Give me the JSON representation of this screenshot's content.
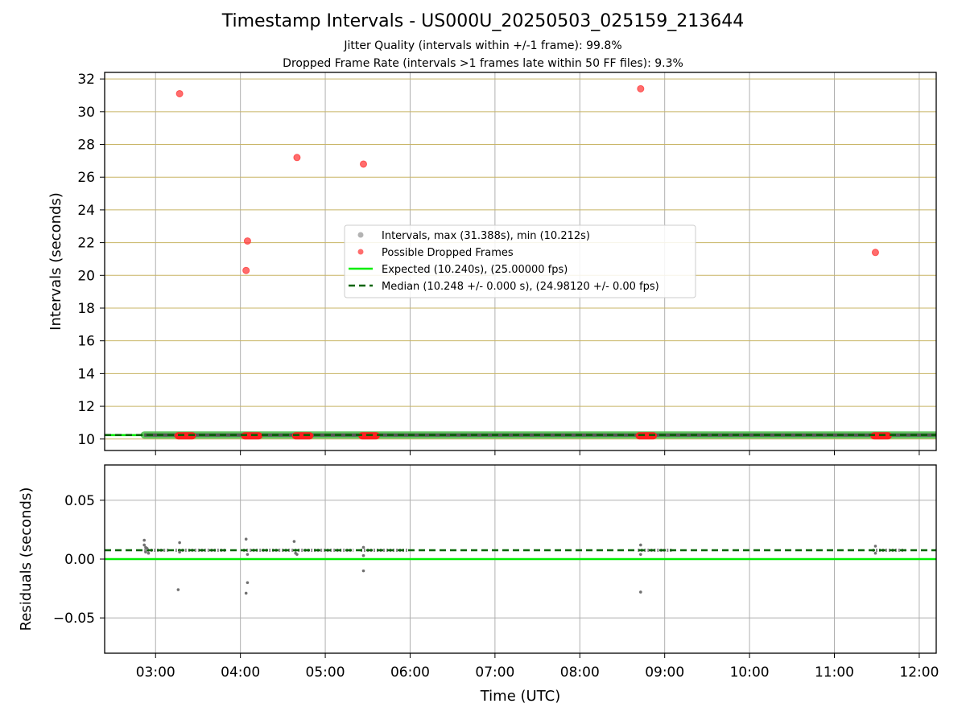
{
  "header": {
    "title": "Timestamp Intervals - US000U_20250503_025159_213644",
    "subtitle_1": "Jitter Quality (intervals within +/-1 frame): 99.8%",
    "subtitle_2": "Dropped Frame Rate (intervals >1 frames late within 50 FF files): 9.3%"
  },
  "chart_data": [
    {
      "type": "scatter",
      "ylabel": "Intervals (seconds)",
      "xlim": [
        "02:24",
        "12:12"
      ],
      "ylim": [
        9.3,
        32.4
      ],
      "y_ticks": [
        10,
        12,
        14,
        16,
        18,
        20,
        22,
        24,
        26,
        28,
        30,
        32
      ],
      "grid": true,
      "legend_position": "center",
      "legend": [
        "Intervals, max (31.388s), min (10.212s)",
        "Possible Dropped Frames",
        "Expected (10.240s), (25.00000 fps)",
        "Median (10.248 +/- 0.000 s), (24.98120 +/- 0.00 fps)"
      ],
      "colors": {
        "intervals": "#808080",
        "dropped": "#ff3c3c",
        "expected": "#00ee00",
        "median": "#006400",
        "grid": "#c8b464"
      },
      "intervals_range": {
        "x_start": "02:52",
        "x_end": "12:12",
        "value": 10.248
      },
      "expected_value": 10.24,
      "median_value": 10.248,
      "dropped_frames": [
        {
          "x": "03:17",
          "y": 31.1
        },
        {
          "x": "04:05",
          "y": 22.1
        },
        {
          "x": "04:04",
          "y": 20.3
        },
        {
          "x": "04:40",
          "y": 27.2
        },
        {
          "x": "05:27",
          "y": 26.8
        },
        {
          "x": "08:43",
          "y": 31.4
        },
        {
          "x": "11:29",
          "y": 21.4
        }
      ],
      "dropped_clusters": [
        {
          "x_start": "03:16",
          "x_end": "03:26",
          "y": 10.2
        },
        {
          "x_start": "04:03",
          "x_end": "04:13",
          "y": 10.2
        },
        {
          "x_start": "04:39",
          "x_end": "04:49",
          "y": 10.2
        },
        {
          "x_start": "05:26",
          "x_end": "05:36",
          "y": 10.2
        },
        {
          "x_start": "08:42",
          "x_end": "08:52",
          "y": 10.2
        },
        {
          "x_start": "11:28",
          "x_end": "11:38",
          "y": 10.2
        }
      ]
    },
    {
      "type": "scatter",
      "xlabel": "Time (UTC)",
      "ylabel": "Residuals (seconds)",
      "xlim": [
        "02:24",
        "12:12"
      ],
      "ylim": [
        -0.08,
        0.08
      ],
      "y_ticks": [
        0.05,
        0.0,
        -0.05
      ],
      "y_tick_labels": [
        "0.05",
        "0.00",
        "−0.05"
      ],
      "x_ticks": [
        "03:00",
        "04:00",
        "05:00",
        "06:00",
        "07:00",
        "08:00",
        "09:00",
        "10:00",
        "11:00",
        "12:00"
      ],
      "grid": true,
      "expected_residual": 0.0,
      "median_residual": 0.0075,
      "points": [
        {
          "x": "02:52",
          "y": 0.016
        },
        {
          "x": "02:52",
          "y": 0.012
        },
        {
          "x": "02:53",
          "y": 0.01
        },
        {
          "x": "02:53",
          "y": 0.006
        },
        {
          "x": "02:54",
          "y": 0.009
        },
        {
          "x": "02:55",
          "y": 0.005
        },
        {
          "x": "03:17",
          "y": 0.014
        },
        {
          "x": "03:17",
          "y": 0.006
        },
        {
          "x": "03:16",
          "y": -0.026
        },
        {
          "x": "04:04",
          "y": 0.017
        },
        {
          "x": "04:05",
          "y": 0.004
        },
        {
          "x": "04:05",
          "y": -0.02
        },
        {
          "x": "04:04",
          "y": -0.029
        },
        {
          "x": "04:38",
          "y": 0.015
        },
        {
          "x": "04:39",
          "y": 0.005
        },
        {
          "x": "04:40",
          "y": 0.004
        },
        {
          "x": "05:27",
          "y": 0.01
        },
        {
          "x": "05:27",
          "y": 0.003
        },
        {
          "x": "05:27",
          "y": -0.01
        },
        {
          "x": "08:43",
          "y": 0.012
        },
        {
          "x": "08:43",
          "y": 0.004
        },
        {
          "x": "08:43",
          "y": -0.028
        },
        {
          "x": "11:29",
          "y": 0.011
        },
        {
          "x": "11:29",
          "y": 0.005
        }
      ],
      "dense_segments": [
        {
          "x_start": "02:52",
          "x_end": "03:10"
        },
        {
          "x_start": "03:14",
          "x_end": "03:50"
        },
        {
          "x_start": "04:02",
          "x_end": "05:20"
        },
        {
          "x_start": "05:25",
          "x_end": "05:58"
        },
        {
          "x_start": "08:41",
          "x_end": "09:05"
        },
        {
          "x_start": "11:27",
          "x_end": "11:50"
        }
      ]
    }
  ]
}
